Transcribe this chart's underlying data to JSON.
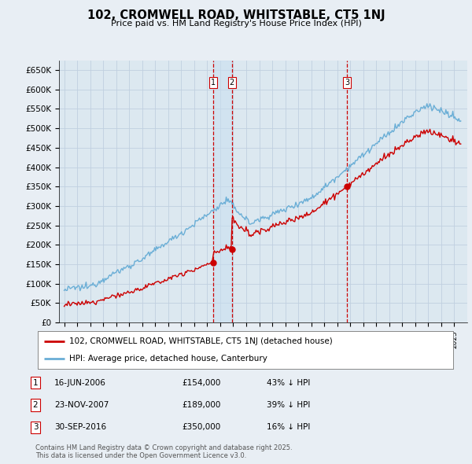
{
  "title": "102, CROMWELL ROAD, WHITSTABLE, CT5 1NJ",
  "subtitle": "Price paid vs. HM Land Registry's House Price Index (HPI)",
  "ylim": [
    0,
    675000
  ],
  "yticks": [
    0,
    50000,
    100000,
    150000,
    200000,
    250000,
    300000,
    350000,
    400000,
    450000,
    500000,
    550000,
    600000,
    650000
  ],
  "ytick_labels": [
    "£0",
    "£50K",
    "£100K",
    "£150K",
    "£200K",
    "£250K",
    "£300K",
    "£350K",
    "£400K",
    "£450K",
    "£500K",
    "£550K",
    "£600K",
    "£650K"
  ],
  "hpi_color": "#6aaed6",
  "price_color": "#cc0000",
  "vline_color": "#cc0000",
  "highlight_band": [
    2006.46,
    2007.9
  ],
  "sale_points": [
    {
      "date_num": 2006.46,
      "price": 154000,
      "label": "1"
    },
    {
      "date_num": 2007.9,
      "price": 189000,
      "label": "2"
    },
    {
      "date_num": 2016.75,
      "price": 350000,
      "label": "3"
    }
  ],
  "vline_dates": [
    2006.46,
    2007.9,
    2016.75
  ],
  "legend_entries": [
    {
      "label": "102, CROMWELL ROAD, WHITSTABLE, CT5 1NJ (detached house)",
      "color": "#cc0000"
    },
    {
      "label": "HPI: Average price, detached house, Canterbury",
      "color": "#6aaed6"
    }
  ],
  "table_rows": [
    {
      "num": "1",
      "date": "16-JUN-2006",
      "price": "£154,000",
      "hpi": "43% ↓ HPI"
    },
    {
      "num": "2",
      "date": "23-NOV-2007",
      "price": "£189,000",
      "hpi": "39% ↓ HPI"
    },
    {
      "num": "3",
      "date": "30-SEP-2016",
      "price": "£350,000",
      "hpi": "16% ↓ HPI"
    }
  ],
  "footer": "Contains HM Land Registry data © Crown copyright and database right 2025.\nThis data is licensed under the Open Government Licence v3.0.",
  "bg_color": "#e8eef4",
  "plot_bg_color": "#dce8f0",
  "grid_color": "#c0cfe0"
}
